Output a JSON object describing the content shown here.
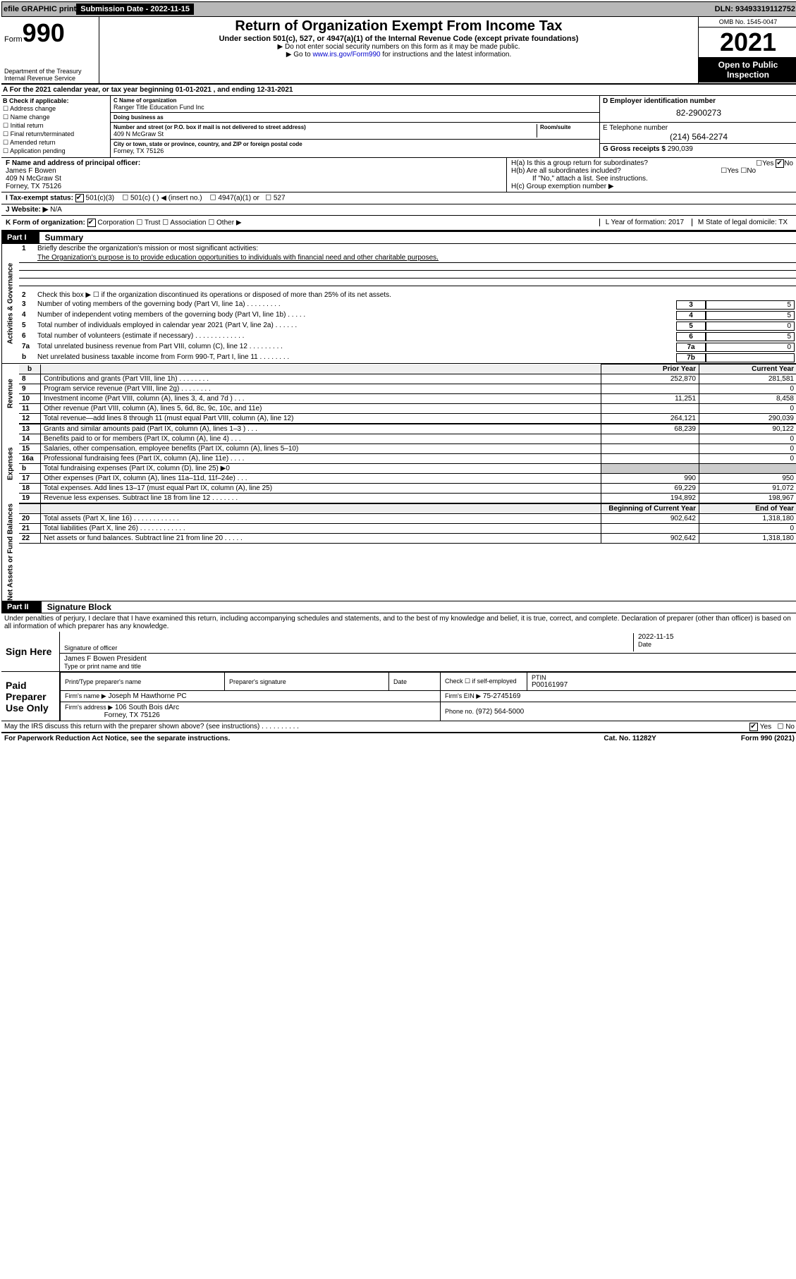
{
  "topbar": {
    "efile": "efile GRAPHIC print",
    "subdate_label": "Submission Date - ",
    "subdate": "2022-11-15",
    "dln_label": "DLN: ",
    "dln": "93493319112752"
  },
  "header": {
    "form_prefix": "Form",
    "form_num": "990",
    "dept": "Department of the Treasury\nInternal Revenue Service",
    "title": "Return of Organization Exempt From Income Tax",
    "subtitle": "Under section 501(c), 527, or 4947(a)(1) of the Internal Revenue Code (except private foundations)",
    "sub2": "▶ Do not enter social security numbers on this form as it may be made public.",
    "sub3": "▶ Go to www.irs.gov/Form990 for instructions and the latest information.",
    "omb": "OMB No. 1545-0047",
    "year": "2021",
    "open": "Open to Public Inspection"
  },
  "rowA": "For the 2021 calendar year, or tax year beginning 01-01-2021     , and ending 12-31-2021",
  "boxB": {
    "title": "B Check if applicable:",
    "items": [
      "Address change",
      "Name change",
      "Initial return",
      "Final return/terminated",
      "Amended return",
      "Application pending"
    ]
  },
  "boxC": {
    "name_label": "C Name of organization",
    "name": "Ranger Title Education Fund Inc",
    "dba_label": "Doing business as",
    "dba": "",
    "addr_label": "Number and street (or P.O. box if mail is not delivered to street address)",
    "room_label": "Room/suite",
    "addr": "409 N McGraw St",
    "city_label": "City or town, state or province, country, and ZIP or foreign postal code",
    "city": "Forney, TX   75126"
  },
  "boxD": {
    "label": "D Employer identification number",
    "val": "82-2900273"
  },
  "boxE": {
    "label": "E Telephone number",
    "val": "(214) 564-2274"
  },
  "boxG": {
    "label": "G Gross receipts $",
    "val": "290,039"
  },
  "boxF": {
    "label": "F Name and address of principal officer:",
    "name": "James F Bowen",
    "addr": "409 N McGraw St",
    "city": "Forney, TX   75126"
  },
  "boxH": {
    "a": "H(a)  Is this a group return for subordinates?",
    "a_yes": "Yes",
    "a_no": "No",
    "b": "H(b)  Are all subordinates included?",
    "b_yes": "Yes",
    "b_no": "No",
    "note": "If \"No,\" attach a list. See instructions.",
    "c": "H(c)  Group exemption number ▶"
  },
  "rowI": {
    "label": "I   Tax-exempt status:",
    "opts": [
      "501(c)(3)",
      "501(c) (    ) ◀ (insert no.)",
      "4947(a)(1) or",
      "527"
    ]
  },
  "rowJ": {
    "label": "J   Website: ▶",
    "val": "N/A"
  },
  "rowK": {
    "label": "K Form of organization:",
    "opts": [
      "Corporation",
      "Trust",
      "Association",
      "Other ▶"
    ],
    "L": "L Year of formation: 2017",
    "M": "M State of legal domicile: TX"
  },
  "part1": {
    "label": "Part I",
    "title": "Summary",
    "vtabs": [
      "Activities & Governance",
      "Revenue",
      "Expenses",
      "Net Assets or Fund Balances"
    ],
    "l1": "Briefly describe the organization's mission or most significant activities:",
    "l1_text": "The Organization's purpose is to provide education opportunities to individuals with financial need and other charitable purposes.",
    "l2": "Check this box ▶ ☐  if the organization discontinued its operations or disposed of more than 25% of its net assets.",
    "lines_top": [
      {
        "n": "3",
        "t": "Number of voting members of the governing body (Part VI, line 1a)   .    .    .    .    .    .    .    .    .",
        "c": "3",
        "v": "5"
      },
      {
        "n": "4",
        "t": "Number of independent voting members of the governing body (Part VI, line 1b)    .    .    .    .    .",
        "c": "4",
        "v": "5"
      },
      {
        "n": "5",
        "t": "Total number of individuals employed in calendar year 2021 (Part V, line 2a)    .    .    .    .    .    .",
        "c": "5",
        "v": "0"
      },
      {
        "n": "6",
        "t": "Total number of volunteers (estimate if necessary)    .    .    .    .    .    .    .    .    .    .    .    .    .",
        "c": "6",
        "v": "5"
      },
      {
        "n": "7a",
        "t": "Total unrelated business revenue from Part VIII, column (C), line 12   .    .    .    .    .    .    .    .    .",
        "c": "7a",
        "v": "0"
      },
      {
        "n": "  b",
        "t": "Net unrelated business taxable income from Form 990-T, Part I, line 11   .    .    .    .    .    .    .    .",
        "c": "7b",
        "v": ""
      }
    ],
    "col_hdr_prior": "Prior Year",
    "col_hdr_curr": "Current Year",
    "rev": [
      {
        "n": "8",
        "t": "Contributions and grants (Part VIII, line 1h)   .    .    .    .    .    .    .    .",
        "p": "252,870",
        "c": "281,581"
      },
      {
        "n": "9",
        "t": "Program service revenue (Part VIII, line 2g)   .    .    .    .    .    .    .    .",
        "p": "",
        "c": "0"
      },
      {
        "n": "10",
        "t": "Investment income (Part VIII, column (A), lines 3, 4, and 7d )   .    .    .",
        "p": "11,251",
        "c": "8,458"
      },
      {
        "n": "11",
        "t": "Other revenue (Part VIII, column (A), lines 5, 6d, 8c, 9c, 10c, and 11e)",
        "p": "",
        "c": "0"
      },
      {
        "n": "12",
        "t": "Total revenue—add lines 8 through 11 (must equal Part VIII, column (A), line 12)",
        "p": "264,121",
        "c": "290,039"
      }
    ],
    "exp": [
      {
        "n": "13",
        "t": "Grants and similar amounts paid (Part IX, column (A), lines 1–3 )   .    .    .",
        "p": "68,239",
        "c": "90,122"
      },
      {
        "n": "14",
        "t": "Benefits paid to or for members (Part IX, column (A), line 4)   .    .    .",
        "p": "",
        "c": "0"
      },
      {
        "n": "15",
        "t": "Salaries, other compensation, employee benefits (Part IX, column (A), lines 5–10)",
        "p": "",
        "c": "0"
      },
      {
        "n": "16a",
        "t": "Professional fundraising fees (Part IX, column (A), line 11e)   .    .    .    .",
        "p": "",
        "c": "0"
      },
      {
        "n": "  b",
        "t": "Total fundraising expenses (Part IX, column (D), line 25) ▶0",
        "p": "__GREY__",
        "c": "__GREY__"
      },
      {
        "n": "17",
        "t": "Other expenses (Part IX, column (A), lines 11a–11d, 11f–24e)    .    .    .",
        "p": "990",
        "c": "950"
      },
      {
        "n": "18",
        "t": "Total expenses. Add lines 13–17 (must equal Part IX, column (A), line 25)",
        "p": "69,229",
        "c": "91,072"
      },
      {
        "n": "19",
        "t": "Revenue less expenses. Subtract line 18 from line 12   .    .    .    .    .    .    .",
        "p": "194,892",
        "c": "198,967"
      }
    ],
    "col_hdr_beg": "Beginning of Current Year",
    "col_hdr_end": "End of Year",
    "net": [
      {
        "n": "20",
        "t": "Total assets (Part X, line 16)    .    .    .    .    .    .    .    .    .    .    .    .",
        "p": "902,642",
        "c": "1,318,180"
      },
      {
        "n": "21",
        "t": "Total liabilities (Part X, line 26)   .    .    .    .    .    .    .    .    .    .    .    .",
        "p": "",
        "c": "0"
      },
      {
        "n": "22",
        "t": "Net assets or fund balances. Subtract line 21 from line 20   .    .    .    .    .",
        "p": "902,642",
        "c": "1,318,180"
      }
    ]
  },
  "part2": {
    "label": "Part II",
    "title": "Signature Block",
    "decl": "Under penalties of perjury, I declare that I have examined this return, including accompanying schedules and statements, and to the best of my knowledge and belief, it is true, correct, and complete. Declaration of preparer (other than officer) is based on all information of which preparer has any knowledge.",
    "sign_here": "Sign Here",
    "sig_officer": "Signature of officer",
    "sig_date": "2022-11-15",
    "date_lbl": "Date",
    "sig_name": "James F Bowen   President",
    "sig_name_lbl": "Type or print name and title",
    "paid": "Paid Preparer Use Only",
    "prep_name_lbl": "Print/Type preparer's name",
    "prep_sig_lbl": "Preparer's signature",
    "prep_date_lbl": "Date",
    "prep_check": "Check ☐ if self-employed",
    "ptin_lbl": "PTIN",
    "ptin": "P00161997",
    "firm_name_lbl": "Firm's name     ▶",
    "firm_name": "Joseph M Hawthorne PC",
    "firm_ein_lbl": "Firm's EIN ▶",
    "firm_ein": "75-2745169",
    "firm_addr_lbl": "Firm's address ▶",
    "firm_addr": "106 South Bois dArc",
    "firm_city": "Forney, TX   75126",
    "phone_lbl": "Phone no.",
    "phone": "(972) 564-5000",
    "discuss": "May the IRS discuss this return with the preparer shown above? (see instructions)    .    .    .    .    .    .    .    .    .    .",
    "yes": "Yes",
    "no": "No"
  },
  "footer": {
    "left": "For Paperwork Reduction Act Notice, see the separate instructions.",
    "mid": "Cat. No. 11282Y",
    "right": "Form 990 (2021)"
  }
}
